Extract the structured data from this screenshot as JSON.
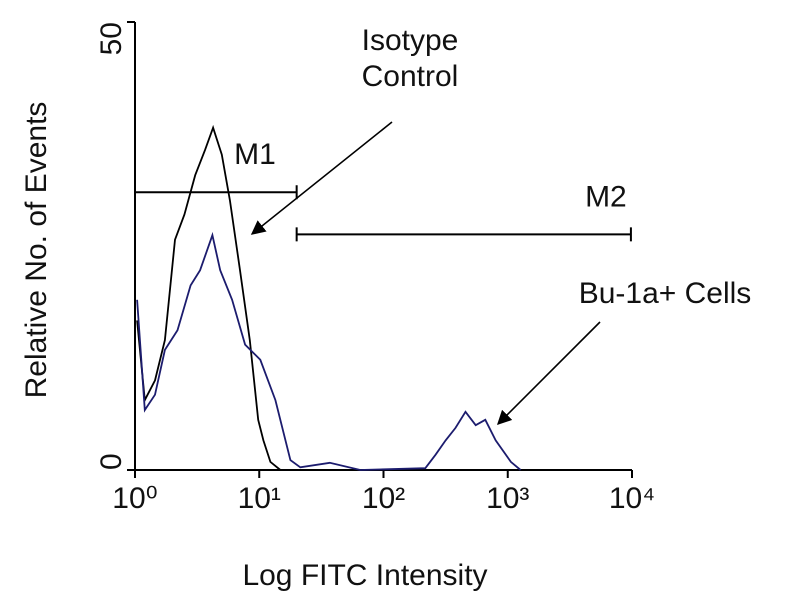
{
  "chart_data": {
    "type": "line",
    "xlabel": "Log FITC Intensity",
    "ylabel": "Relative No. of Events",
    "xscale": "log",
    "xlim": [
      1,
      10000
    ],
    "ylim": [
      0,
      50
    ],
    "xticks": [
      {
        "value": 1,
        "label": "10⁰"
      },
      {
        "value": 10,
        "label": "10¹"
      },
      {
        "value": 100,
        "label": "10²"
      },
      {
        "value": 1000,
        "label": "10³"
      },
      {
        "value": 10000,
        "label": "10⁴"
      }
    ],
    "yticks": [
      0,
      50
    ],
    "grid": false,
    "series": [
      {
        "name": "Isotype Control",
        "color": "#000000",
        "x": [
          1.04,
          1.2,
          1.45,
          1.74,
          2.1,
          2.5,
          3.05,
          3.66,
          4.25,
          5.0,
          5.8,
          7.0,
          8.4,
          9.8,
          10.8,
          12.3,
          14.8
        ],
        "values": [
          16.7,
          7.8,
          10,
          14.5,
          25.7,
          28.5,
          32.9,
          35.7,
          38.2,
          35.2,
          30.1,
          22.3,
          14.5,
          5.6,
          3.3,
          0.9,
          0
        ]
      },
      {
        "name": "Bu-1a+ Cells",
        "color": "#1c1c6e",
        "x": [
          1.04,
          1.2,
          1.45,
          1.74,
          2.2,
          2.8,
          3.34,
          4.2,
          4.85,
          6.05,
          7.7,
          10.2,
          13.5,
          17.8,
          21.4,
          37,
          65,
          217,
          262,
          316,
          380,
          457,
          552,
          660,
          800,
          1060,
          1270
        ],
        "values": [
          19,
          6.7,
          8.4,
          13.4,
          15.6,
          20.6,
          22.3,
          26.2,
          22.3,
          19,
          14,
          12.3,
          7.8,
          1.1,
          0.3,
          0.8,
          0,
          0.2,
          1.7,
          3.3,
          4.7,
          6.5,
          5,
          5.6,
          3.3,
          0.9,
          0
        ]
      }
    ],
    "gates": [
      {
        "label": "M1",
        "range": [
          1,
          20
        ],
        "y": 31
      },
      {
        "label": "M2",
        "range": [
          20,
          9800
        ],
        "y": 26.3
      }
    ]
  }
}
